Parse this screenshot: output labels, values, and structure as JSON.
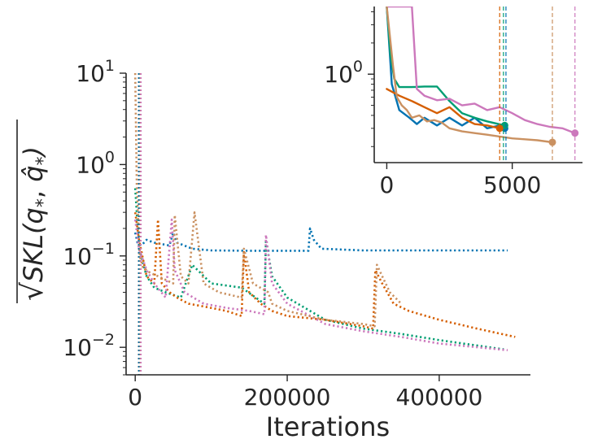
{
  "chart_data": [
    {
      "type": "line",
      "panel": "main",
      "xlabel": "Iterations",
      "ylabel": "√SKL(q*, q̂*)",
      "ylabel_parts": {
        "radical": "√",
        "text": "SKL(q",
        "sub_star": "*",
        "comma": ", ",
        "qhat": "q̂",
        "close": ")"
      },
      "yscale": "log",
      "xlim": [
        -12000,
        520000
      ],
      "ylim": [
        0.005,
        10
      ],
      "xticks": [
        0,
        200000,
        400000
      ],
      "xtick_labels": [
        "0",
        "200000",
        "400000"
      ],
      "yticks": [
        0.01,
        0.1,
        1,
        10
      ],
      "ytick_labels": [
        {
          "base": "10",
          "exp": "−2"
        },
        {
          "base": "10",
          "exp": "−1"
        },
        {
          "base": "10",
          "exp": "0"
        },
        {
          "base": "10",
          "exp": "1"
        }
      ],
      "linestyle": "dotted",
      "series": [
        {
          "name": "blue",
          "color": "#0173b2",
          "x": [
            0,
            3000,
            8000,
            15000,
            25000,
            45000,
            50000,
            55000,
            75000,
            100000,
            150000,
            200000,
            228000,
            230000,
            235000,
            245000,
            300000,
            400000,
            490000
          ],
          "y": [
            0.18,
            0.14,
            0.13,
            0.15,
            0.14,
            0.13,
            0.18,
            0.14,
            0.12,
            0.115,
            0.114,
            0.114,
            0.114,
            0.2,
            0.15,
            0.12,
            0.115,
            0.115,
            0.115
          ]
        },
        {
          "name": "green",
          "color": "#029e73",
          "x": [
            0,
            5000,
            15000,
            25000,
            40000,
            60000,
            75000,
            100000,
            140000,
            170000,
            172000,
            180000,
            200000,
            250000,
            300000,
            350000,
            400000,
            485000
          ],
          "y": [
            0.55,
            0.12,
            0.06,
            0.045,
            0.04,
            0.035,
            0.08,
            0.05,
            0.045,
            0.03,
            0.15,
            0.06,
            0.035,
            0.02,
            0.016,
            0.014,
            0.012,
            0.0095
          ]
        },
        {
          "name": "orange",
          "color": "#d55e00",
          "x": [
            0,
            5000,
            15000,
            25000,
            30000,
            35000,
            45000,
            55000,
            70000,
            90000,
            120000,
            140000,
            143000,
            150000,
            165000,
            180000,
            200000,
            250000,
            300000,
            313000,
            316000,
            325000,
            340000,
            360000,
            400000,
            450000,
            500000
          ],
          "y": [
            0.3,
            0.15,
            0.06,
            0.05,
            0.25,
            0.05,
            0.04,
            0.035,
            0.03,
            0.028,
            0.025,
            0.022,
            0.11,
            0.04,
            0.03,
            0.025,
            0.022,
            0.02,
            0.017,
            0.016,
            0.07,
            0.05,
            0.03,
            0.025,
            0.02,
            0.016,
            0.013
          ]
        },
        {
          "name": "pink",
          "color": "#cc78bc",
          "x": [
            0,
            5000,
            15000,
            25000,
            40000,
            48000,
            52000,
            65000,
            90000,
            120000,
            150000,
            170000,
            172000,
            180000,
            200000,
            250000,
            300000,
            350000,
            400000,
            490000
          ],
          "y": [
            0.25,
            0.12,
            0.07,
            0.05,
            0.035,
            0.25,
            0.07,
            0.04,
            0.03,
            0.027,
            0.025,
            0.023,
            0.17,
            0.05,
            0.03,
            0.018,
            0.015,
            0.013,
            0.011,
            0.0093
          ]
        },
        {
          "name": "tan",
          "color": "#ca9161",
          "x": [
            0,
            2000,
            6000,
            10000,
            20000,
            30000,
            50000,
            52000,
            60000,
            70000,
            78000,
            90000,
            110000,
            140000,
            143000,
            155000,
            175000,
            180000,
            200000,
            250000,
            300000,
            315000,
            318000,
            325000,
            335000,
            350000
          ],
          "y": [
            10,
            0.6,
            0.1,
            0.075,
            0.065,
            0.06,
            0.05,
            0.28,
            0.06,
            0.05,
            0.3,
            0.05,
            0.04,
            0.035,
            0.12,
            0.05,
            0.04,
            0.03,
            0.025,
            0.02,
            0.018,
            0.017,
            0.08,
            0.06,
            0.04,
            0.03
          ]
        }
      ],
      "vlines": [
        {
          "x": 4500,
          "color": "#d55e00"
        },
        {
          "x": 4700,
          "color": "#0173b2"
        },
        {
          "x": 6600,
          "color": "#ca9161"
        },
        {
          "x": 7500,
          "color": "#cc78bc"
        }
      ]
    },
    {
      "type": "line",
      "panel": "inset",
      "yscale": "log",
      "xlim": [
        -500,
        7800
      ],
      "ylim": [
        0.14,
        4.5
      ],
      "xticks": [
        0,
        5000
      ],
      "xtick_labels": [
        "0",
        "5000"
      ],
      "yticks": [
        1
      ],
      "ytick_labels": [
        {
          "base": "10",
          "exp": "0"
        }
      ],
      "linestyle": "solid",
      "series": [
        {
          "name": "blue",
          "color": "#0173b2",
          "x": [
            0,
            200,
            500,
            900,
            1200,
            1500,
            2000,
            2500,
            3000,
            3500,
            4000,
            4500,
            4700
          ],
          "y": [
            4.5,
            0.8,
            0.45,
            0.38,
            0.33,
            0.38,
            0.32,
            0.38,
            0.32,
            0.38,
            0.3,
            0.32,
            0.3
          ],
          "end_marker": true
        },
        {
          "name": "green",
          "color": "#029e73",
          "x": [
            0,
            150,
            300,
            500,
            1000,
            1500,
            2000,
            2500,
            3000,
            3500,
            4000,
            4700
          ],
          "y": [
            4.5,
            1.5,
            0.9,
            0.75,
            0.75,
            0.76,
            0.76,
            0.55,
            0.42,
            0.38,
            0.35,
            0.32
          ],
          "end_marker": true
        },
        {
          "name": "orange",
          "color": "#d55e00",
          "x": [
            0,
            500,
            1000,
            1500,
            2000,
            2500,
            3000,
            3500,
            4000,
            4500
          ],
          "y": [
            0.72,
            0.62,
            0.55,
            0.48,
            0.42,
            0.48,
            0.38,
            0.33,
            0.32,
            0.3
          ],
          "end_marker": true
        },
        {
          "name": "pink",
          "color": "#cc78bc",
          "x": [
            0,
            500,
            1000,
            1200,
            1500,
            2000,
            2500,
            3000,
            3500,
            4000,
            4500,
            5000,
            5500,
            6000,
            6500,
            7000,
            7500
          ],
          "y": [
            4.5,
            4.5,
            4.5,
            0.72,
            0.62,
            0.56,
            0.58,
            0.5,
            0.52,
            0.45,
            0.48,
            0.42,
            0.36,
            0.33,
            0.31,
            0.3,
            0.27
          ],
          "end_marker": true
        },
        {
          "name": "tan",
          "color": "#ca9161",
          "x": [
            0,
            250,
            400,
            600,
            800,
            1000,
            1300,
            1600,
            1900,
            2200,
            2500,
            3000,
            3500,
            4000,
            4500,
            5000,
            5500,
            6000,
            6600
          ],
          "y": [
            4.5,
            1.2,
            0.6,
            0.5,
            0.45,
            0.38,
            0.4,
            0.35,
            0.36,
            0.34,
            0.3,
            0.28,
            0.27,
            0.26,
            0.25,
            0.24,
            0.235,
            0.23,
            0.22
          ],
          "end_marker": true
        }
      ],
      "vlines": [
        {
          "x": 4500,
          "color": "#d55e00",
          "dash": "dashed"
        },
        {
          "x": 4650,
          "color": "#029e73",
          "dash": "dashed"
        },
        {
          "x": 4750,
          "color": "#0173b2",
          "dash": "dashed"
        },
        {
          "x": 6600,
          "color": "#ca9161",
          "dash": "dashed"
        },
        {
          "x": 7500,
          "color": "#cc78bc",
          "dash": "dashed"
        }
      ]
    }
  ]
}
